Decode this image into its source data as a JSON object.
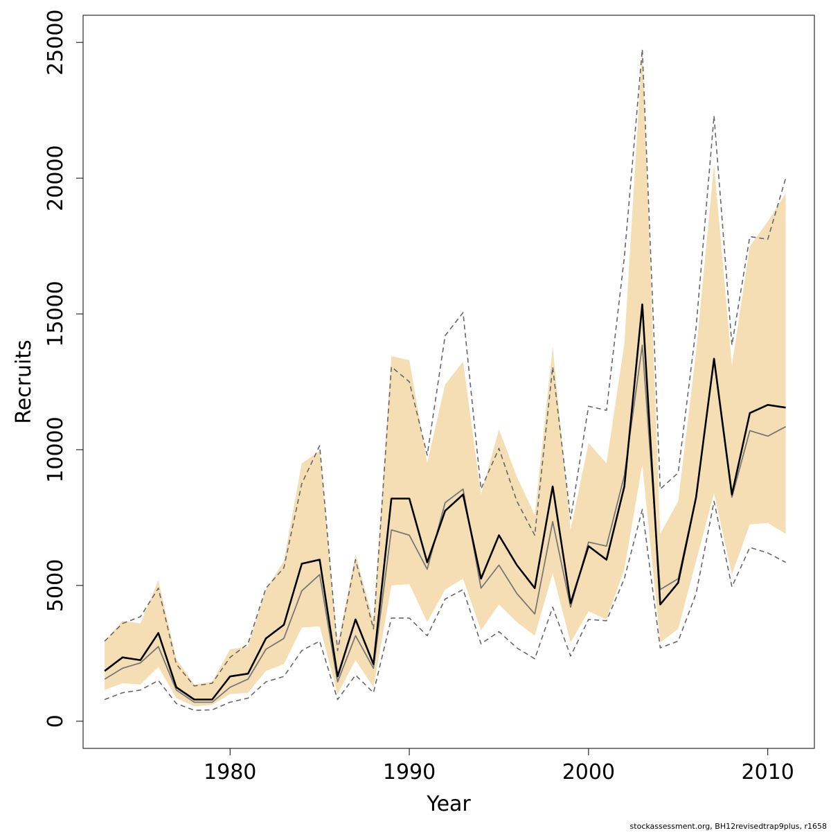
{
  "chart_data": {
    "type": "line",
    "title": "",
    "xlabel": "Year",
    "ylabel": "Recruits",
    "xlim": [
      1971.8,
      2012.6
    ],
    "ylim": [
      -1000,
      26000
    ],
    "x_ticks": [
      1980,
      1990,
      2000,
      2010
    ],
    "x_tick_labels": [
      "1980",
      "1990",
      "2000",
      "2010"
    ],
    "y_ticks": [
      0,
      5000,
      10000,
      15000,
      20000,
      25000
    ],
    "y_tick_labels": [
      "0",
      "5000",
      "10000",
      "15000",
      "20000",
      "25000"
    ],
    "grid": false,
    "legend": "none",
    "years": [
      1973,
      1974,
      1975,
      1976,
      1977,
      1978,
      1979,
      1980,
      1981,
      1982,
      1983,
      1984,
      1985,
      1986,
      1987,
      1988,
      1989,
      1990,
      1991,
      1992,
      1993,
      1994,
      1995,
      1996,
      1997,
      1998,
      1999,
      2000,
      2001,
      2002,
      2003,
      2004,
      2005,
      2006,
      2007,
      2008,
      2009,
      2010,
      2011
    ],
    "series": [
      {
        "role": "estimate",
        "color": "#000000",
        "values": [
          1850,
          2350,
          2250,
          3250,
          1250,
          800,
          800,
          1650,
          1750,
          3050,
          3550,
          5800,
          5950,
          1650,
          3750,
          2100,
          8200,
          8200,
          5850,
          7750,
          8350,
          5250,
          6850,
          5750,
          4900,
          8650,
          4350,
          6450,
          5950,
          8650,
          15350,
          4300,
          5100,
          8250,
          13350,
          8350,
          11350,
          11650,
          11550
        ]
      },
      {
        "role": "alternate-estimate",
        "color": "#777777",
        "values": [
          1550,
          1950,
          2150,
          2750,
          1150,
          700,
          700,
          1250,
          1550,
          2650,
          3050,
          4800,
          5400,
          1450,
          3150,
          1950,
          7050,
          6850,
          5600,
          8050,
          8550,
          4900,
          5750,
          4700,
          3950,
          7350,
          4200,
          6600,
          6450,
          9050,
          13850,
          4850,
          5250,
          8250,
          13350,
          8250,
          10700,
          10500,
          10850
        ]
      },
      {
        "role": "interval-upper",
        "color": "#666666",
        "style": "dashed",
        "values": [
          2950,
          3600,
          3850,
          4900,
          2100,
          1300,
          1400,
          2350,
          2850,
          4900,
          5650,
          8750,
          10150,
          2600,
          5950,
          3400,
          13050,
          12500,
          9800,
          14200,
          15050,
          8550,
          10050,
          8100,
          6850,
          13050,
          7450,
          11600,
          11450,
          17100,
          24750,
          8550,
          9150,
          14500,
          22300,
          13850,
          17850,
          17750,
          20000
        ]
      },
      {
        "role": "interval-lower",
        "color": "#666666",
        "style": "dashed",
        "values": [
          800,
          1050,
          1150,
          1500,
          650,
          400,
          420,
          700,
          850,
          1450,
          1650,
          2600,
          2950,
          800,
          1700,
          1050,
          3800,
          3800,
          3150,
          4500,
          4850,
          2850,
          3300,
          2700,
          2300,
          4200,
          2400,
          3750,
          3700,
          5250,
          7800,
          2700,
          2950,
          4700,
          8100,
          4950,
          6400,
          6200,
          5850
        ]
      },
      {
        "role": "band-upper",
        "color": "#f5deb3",
        "values": [
          2950,
          3700,
          3600,
          5200,
          2300,
          1350,
          1450,
          2650,
          2750,
          4850,
          5900,
          9500,
          9950,
          2800,
          6150,
          3700,
          13450,
          13300,
          9500,
          12400,
          13250,
          8350,
          10750,
          9000,
          7600,
          13800,
          7050,
          10250,
          9500,
          13900,
          24750,
          6900,
          8100,
          13600,
          20500,
          13100,
          17500,
          18400,
          19450
        ]
      },
      {
        "role": "band-lower",
        "color": "#f5deb3",
        "values": [
          1150,
          1400,
          1350,
          2000,
          850,
          550,
          600,
          1000,
          1050,
          1850,
          2100,
          3450,
          3500,
          1000,
          2250,
          1250,
          5000,
          5050,
          3650,
          4850,
          5250,
          3350,
          4300,
          3650,
          3150,
          5450,
          2900,
          4050,
          3750,
          5600,
          9450,
          2900,
          3400,
          5900,
          8400,
          5400,
          7250,
          7300,
          6900
        ]
      }
    ]
  },
  "footnote": "stockassessment.org, BH12revisedtrap9plus, r1658"
}
